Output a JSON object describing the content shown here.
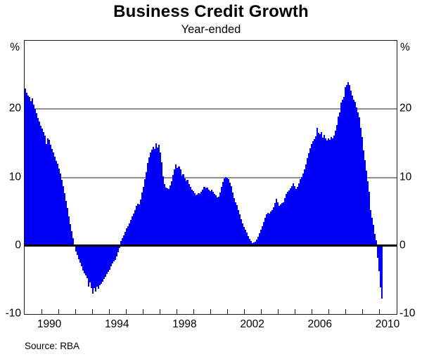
{
  "chart_data": {
    "type": "bar",
    "title": "Business Credit Growth",
    "subtitle": "Year-ended",
    "unit": "%",
    "source": "Source: RBA",
    "ylim": [
      -10,
      30
    ],
    "yticks": [
      -10,
      0,
      10,
      20
    ],
    "gridlines": [
      10,
      20
    ],
    "grid_on": true,
    "xlim_years": [
      1989,
      2011
    ],
    "x_label_years": [
      1990,
      1994,
      1998,
      2002,
      2006,
      2010
    ],
    "bar_color": "#0000fa",
    "gridline_color": "#8f8f8f",
    "frame_color": "#1a1a1a",
    "series": [
      {
        "name": "Business credit growth (year-ended)",
        "frequency": "monthly",
        "start_month": "1989-01",
        "end_month": "2010-02",
        "values": [
          23.0,
          22.4,
          22.0,
          21.8,
          21.2,
          21.6,
          20.6,
          20.0,
          19.4,
          18.7,
          18.2,
          17.6,
          17.1,
          16.6,
          16.1,
          14.9,
          15.7,
          15.5,
          14.8,
          14.2,
          13.6,
          13.0,
          12.4,
          12.0,
          11.3,
          10.6,
          9.6,
          8.7,
          7.7,
          6.6,
          5.5,
          4.3,
          3.2,
          2.1,
          1.1,
          0.2,
          -0.8,
          -1.4,
          -2.0,
          -2.5,
          -3.0,
          -3.6,
          -4.0,
          -4.3,
          -4.8,
          -6.0,
          -5.4,
          -6.2,
          -7.0,
          -6.2,
          -6.7,
          -6.0,
          -6.3,
          -5.8,
          -5.6,
          -5.3,
          -4.9,
          -4.5,
          -4.1,
          -3.8,
          -3.5,
          -3.0,
          -2.6,
          -2.3,
          -2.1,
          -1.6,
          -0.9,
          -0.3,
          0.7,
          1.1,
          1.5,
          2.0,
          2.5,
          2.9,
          3.3,
          3.8,
          4.3,
          4.7,
          5.2,
          5.8,
          6.1,
          6.0,
          6.8,
          7.8,
          8.6,
          9.7,
          10.8,
          12.1,
          12.9,
          13.6,
          14.1,
          14.5,
          14.2,
          15.0,
          14.4,
          14.8,
          13.6,
          12.2,
          10.2,
          9.0,
          8.5,
          8.4,
          8.3,
          8.8,
          9.4,
          10.4,
          11.2,
          11.9,
          11.4,
          11.6,
          11.2,
          10.3,
          10.5,
          9.8,
          9.4,
          9.6,
          9.0,
          8.6,
          8.2,
          8.0,
          7.7,
          7.4,
          7.5,
          7.7,
          7.6,
          7.9,
          8.2,
          8.6,
          8.4,
          8.5,
          8.2,
          8.0,
          8.2,
          7.9,
          7.6,
          7.4,
          7.1,
          7.2,
          7.8,
          8.6,
          9.3,
          9.8,
          10.1,
          9.9,
          9.7,
          9.2,
          8.7,
          7.8,
          7.0,
          6.4,
          5.9,
          5.2,
          4.6,
          3.9,
          3.3,
          2.8,
          2.3,
          1.9,
          1.4,
          1.0,
          0.7,
          0.4,
          0.5,
          0.6,
          0.9,
          1.3,
          1.8,
          2.3,
          2.9,
          3.5,
          4.1,
          4.6,
          4.8,
          4.7,
          5.0,
          5.2,
          5.6,
          6.2,
          6.9,
          6.3,
          5.8,
          6.0,
          6.2,
          6.4,
          7.0,
          7.6,
          7.9,
          8.1,
          8.4,
          8.7,
          9.1,
          8.7,
          8.3,
          8.6,
          9.1,
          9.7,
          10.1,
          10.6,
          11.2,
          11.9,
          12.8,
          13.5,
          14.3,
          14.9,
          15.3,
          15.6,
          16.0,
          17.2,
          16.5,
          16.3,
          16.6,
          15.8,
          16.2,
          15.7,
          15.4,
          15.7,
          15.5,
          15.9,
          15.7,
          16.1,
          16.8,
          17.7,
          18.9,
          19.5,
          21.0,
          21.4,
          21.8,
          23.2,
          23.5,
          23.9,
          23.5,
          22.7,
          22.0,
          21.4,
          21.1,
          20.2,
          19.5,
          18.8,
          17.3,
          15.9,
          14.0,
          12.5,
          11.0,
          9.4,
          7.9,
          5.2,
          4.1,
          3.1,
          1.7,
          0.8,
          -1.8,
          -3.7,
          -6.1,
          -7.7
        ]
      }
    ]
  }
}
